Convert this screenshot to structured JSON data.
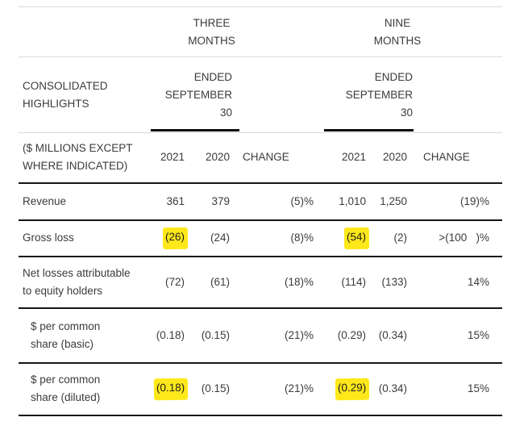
{
  "colors": {
    "highlight_yellow": "#ffe81a",
    "rule_dark": "#161616",
    "rule_light": "#d9d9d9",
    "text": "#3b3b3b"
  },
  "table": {
    "title": "CONSOLIDATED\nHIGHLIGHTS",
    "units_note": "($ MILLIONS EXCEPT\nWHERE INDICATED)",
    "col_groups": [
      {
        "title": "THREE\nMONTHS",
        "subtitle": "ENDED\nSEPTEMBER\n30"
      },
      {
        "title": "NINE\nMONTHS",
        "subtitle": "ENDED\nSEPTEMBER\n30"
      }
    ],
    "year_cols": [
      "2021",
      "2020",
      "CHANGE",
      "2021",
      "2020",
      "CHANGE"
    ],
    "rows": [
      {
        "label": "Revenue",
        "values": [
          "361",
          "379",
          "(5)%",
          "1,010",
          "1,250",
          "(19)%"
        ],
        "highlighted_values": []
      },
      {
        "label": "Gross loss",
        "values": [
          "(26)",
          "(24)",
          "(8)%",
          "(54)",
          "(2)",
          ">(100   )%"
        ],
        "highlighted_values": [
          0,
          3
        ]
      },
      {
        "label": "Net losses attributable\nto equity holders",
        "values": [
          "(72)",
          "(61)",
          "(18)%",
          "(114)",
          "(133)",
          "14%"
        ],
        "highlighted_values": []
      },
      {
        "label": "$ per common\nshare (basic)",
        "values": [
          "(0.18)",
          "(0.15)",
          "(21)%",
          "(0.29)",
          "(0.34)",
          "15%"
        ],
        "highlighted_values": []
      },
      {
        "label": "$ per common\nshare (diluted)",
        "values": [
          "(0.18)",
          "(0.15)",
          "(21)%",
          "(0.29)",
          "(0.34)",
          "15%"
        ],
        "highlighted_values": [
          0,
          3
        ]
      }
    ]
  }
}
